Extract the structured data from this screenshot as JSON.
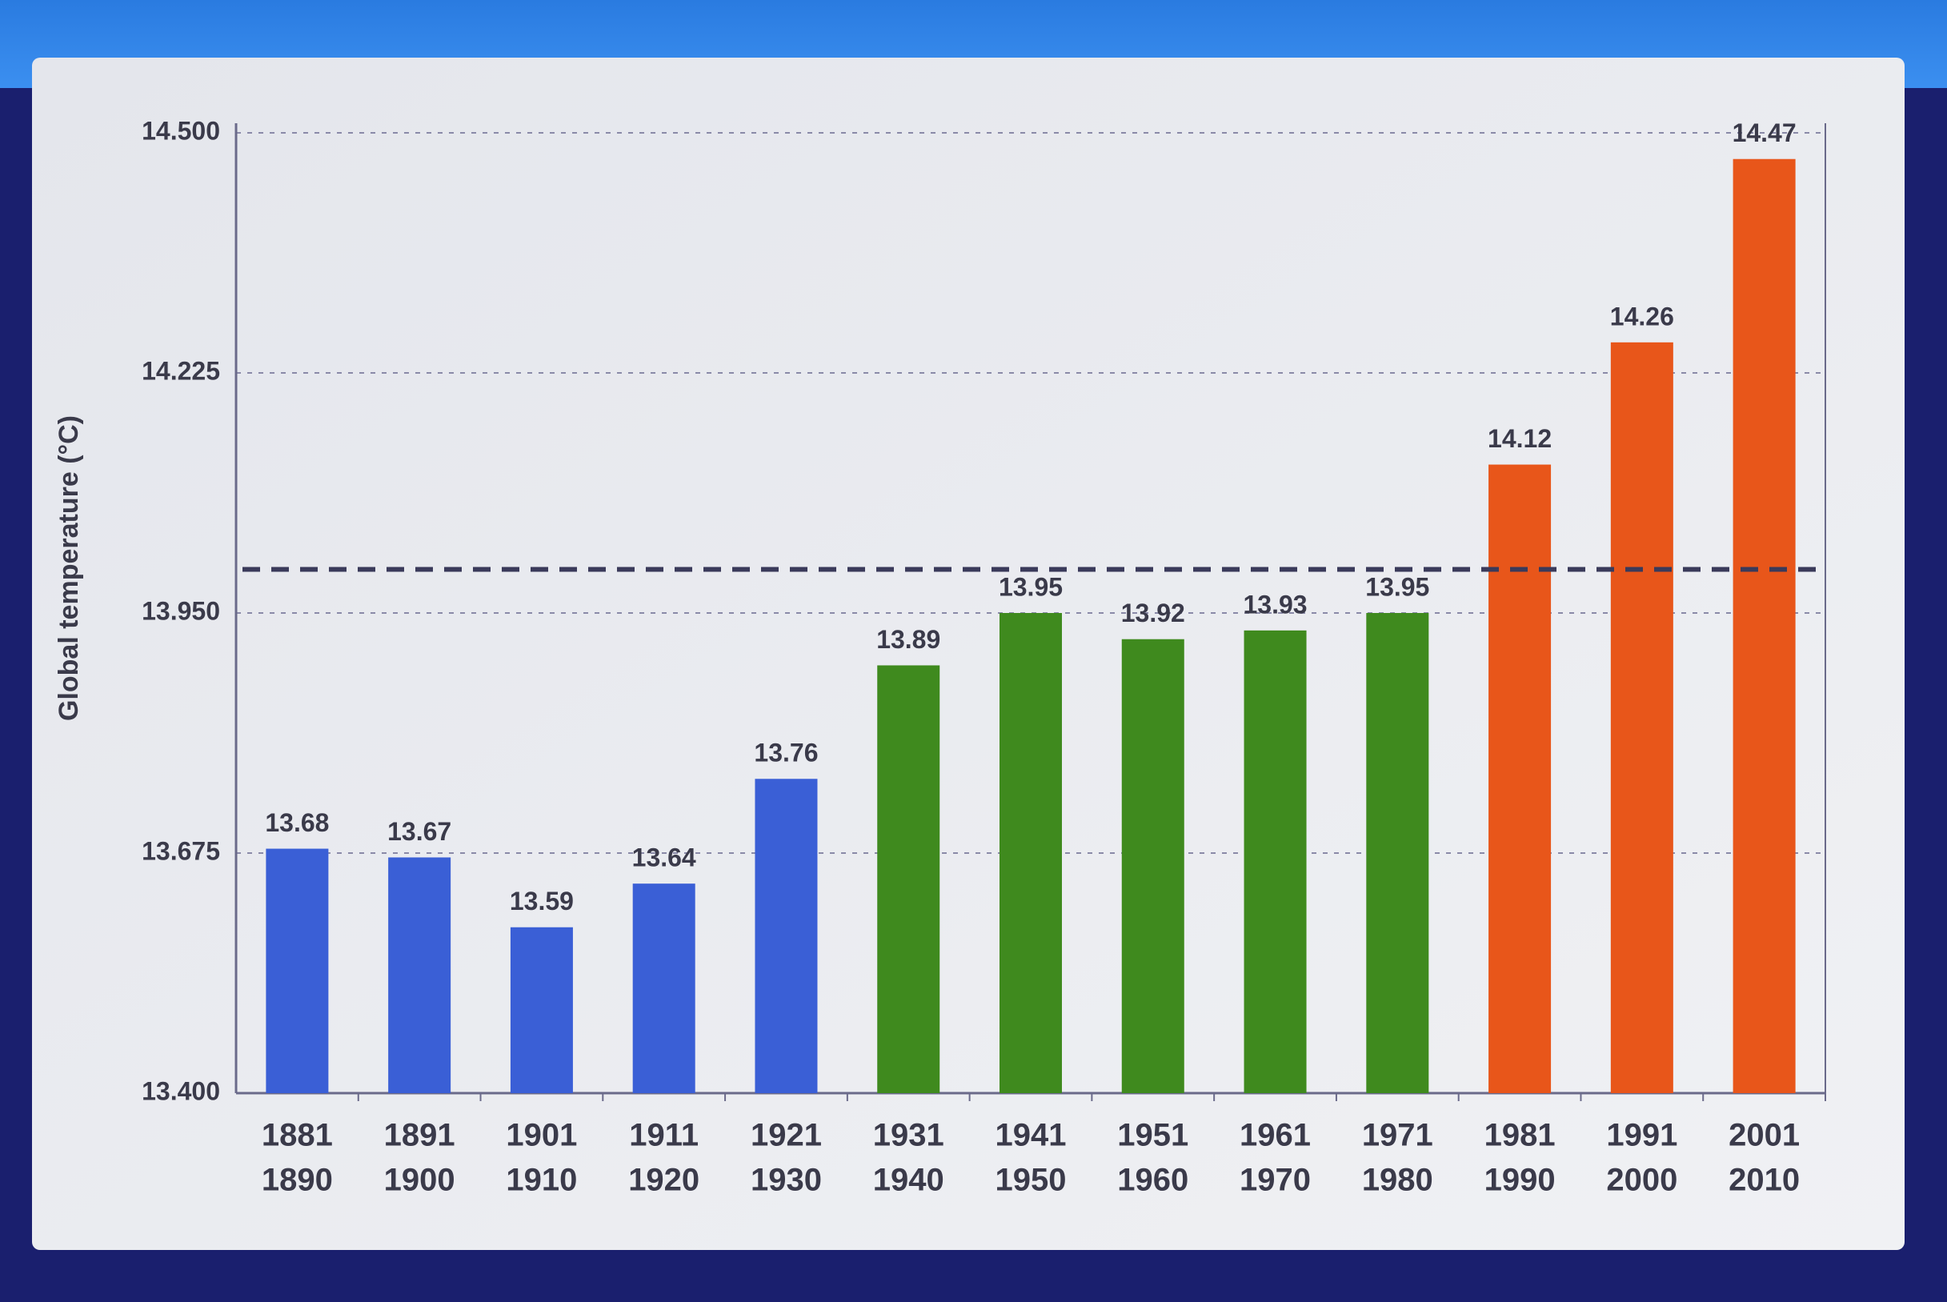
{
  "chart_data": {
    "type": "bar",
    "y_label": "Global temperature (°C)",
    "categories": [
      [
        "1881",
        "1890"
      ],
      [
        "1891",
        "1900"
      ],
      [
        "1901",
        "1910"
      ],
      [
        "1911",
        "1920"
      ],
      [
        "1921",
        "1930"
      ],
      [
        "1931",
        "1940"
      ],
      [
        "1941",
        "1950"
      ],
      [
        "1951",
        "1960"
      ],
      [
        "1961",
        "1970"
      ],
      [
        "1971",
        "1980"
      ],
      [
        "1981",
        "1990"
      ],
      [
        "1991",
        "2000"
      ],
      [
        "2001",
        "2010"
      ]
    ],
    "values": [
      13.68,
      13.67,
      13.59,
      13.64,
      13.76,
      13.89,
      13.95,
      13.92,
      13.93,
      13.95,
      14.12,
      14.26,
      14.47
    ],
    "colors": [
      "#3a5fd6",
      "#3a5fd6",
      "#3a5fd6",
      "#3a5fd6",
      "#3a5fd6",
      "#3f8a1e",
      "#3f8a1e",
      "#3f8a1e",
      "#3f8a1e",
      "#3f8a1e",
      "#e8561a",
      "#e8561a",
      "#e8561a"
    ],
    "ylim": [
      13.4,
      14.5
    ],
    "yticks": [
      {
        "value": 13.4,
        "label": "13.400"
      },
      13.675,
      {
        "value": 13.95,
        "label": "13.950"
      },
      14.225,
      {
        "value": 14.5,
        "label": "14.500"
      }
    ],
    "grid": true,
    "reference_line": 14.0
  }
}
